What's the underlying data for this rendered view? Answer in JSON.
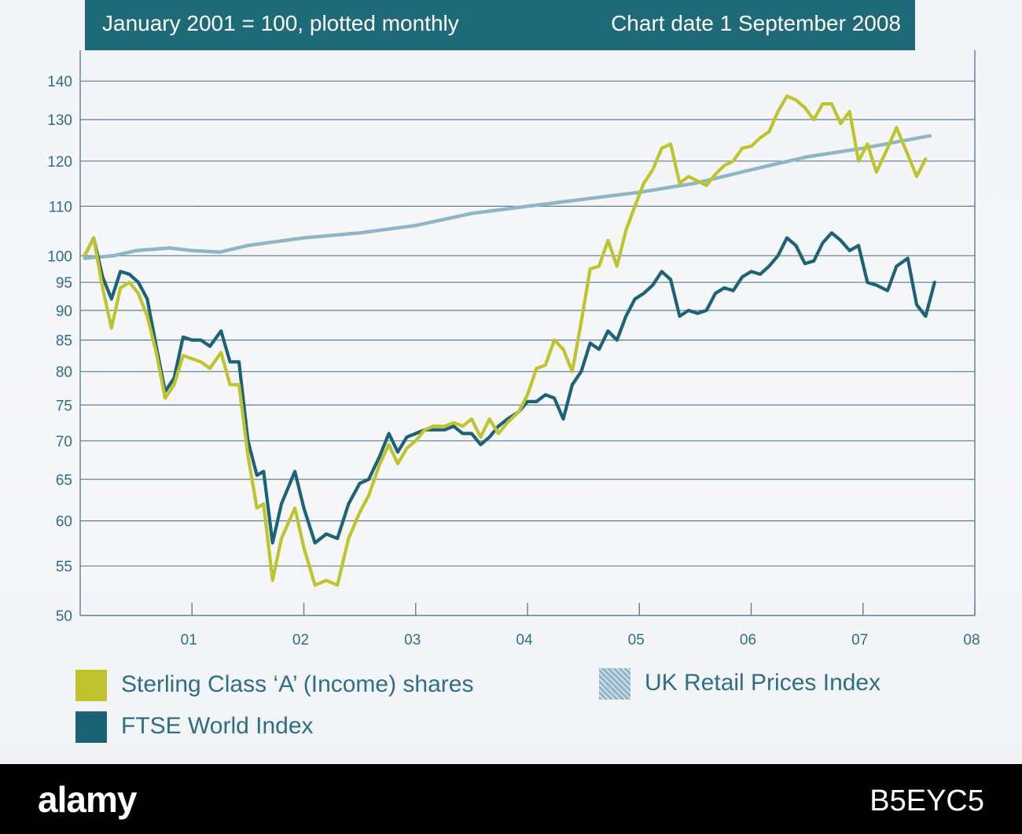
{
  "header": {
    "left_text": "January 2001 = 100, plotted monthly",
    "right_text": "Chart date 1 September 2008"
  },
  "colors": {
    "header_bg": "#1f6a78",
    "grid": "#5d7f95",
    "axis": "#5d7f95",
    "tick_text": "#2f6f86",
    "sterling": "#bfc42e",
    "ftse": "#1d6377",
    "rpi": "#8fb6c6"
  },
  "legend": [
    {
      "key": "sterling",
      "label": "Sterling Class ‘A’ (Income) shares"
    },
    {
      "key": "rpi",
      "label": "UK Retail Prices Index"
    },
    {
      "key": "ftse",
      "label": "FTSE World Index"
    }
  ],
  "footer": {
    "logo": "alamy",
    "image_id": "B5EYC5"
  },
  "chart_data": {
    "type": "line",
    "title": "",
    "xlabel": "",
    "ylabel": "",
    "y_scale": "log",
    "ylim": [
      50,
      145
    ],
    "xlim": [
      2000.0,
      2008.0
    ],
    "yticks": [
      140,
      130,
      120,
      110,
      100,
      95,
      90,
      85,
      80,
      75,
      70,
      65,
      60,
      55,
      50
    ],
    "xticks": [
      {
        "x": 2001,
        "label": "01"
      },
      {
        "x": 2002,
        "label": "02"
      },
      {
        "x": 2003,
        "label": "03"
      },
      {
        "x": 2004,
        "label": "04"
      },
      {
        "x": 2005,
        "label": "05"
      },
      {
        "x": 2006,
        "label": "06"
      },
      {
        "x": 2007,
        "label": "07"
      },
      {
        "x": 2008,
        "label": "08"
      }
    ],
    "grid": true,
    "legend_position": "bottom",
    "series": [
      {
        "key": "rpi",
        "name": "UK Retail Prices Index",
        "points": [
          [
            2000.04,
            99.5
          ],
          [
            2000.3,
            100
          ],
          [
            2000.5,
            101
          ],
          [
            2000.8,
            101.5
          ],
          [
            2001.0,
            101
          ],
          [
            2001.25,
            100.7
          ],
          [
            2001.5,
            102
          ],
          [
            2002.0,
            103.5
          ],
          [
            2002.5,
            104.5
          ],
          [
            2003.0,
            106
          ],
          [
            2003.5,
            108.5
          ],
          [
            2004.0,
            110
          ],
          [
            2004.5,
            111.5
          ],
          [
            2005.0,
            113
          ],
          [
            2005.5,
            115
          ],
          [
            2006.0,
            118
          ],
          [
            2006.5,
            121
          ],
          [
            2007.0,
            123
          ],
          [
            2007.3,
            124.5
          ],
          [
            2007.6,
            126
          ]
        ]
      },
      {
        "key": "ftse",
        "name": "FTSE World Index",
        "points": [
          [
            2000.04,
            100
          ],
          [
            2000.12,
            103.5
          ],
          [
            2000.2,
            96
          ],
          [
            2000.28,
            92
          ],
          [
            2000.36,
            97
          ],
          [
            2000.44,
            96.5
          ],
          [
            2000.52,
            95
          ],
          [
            2000.6,
            92
          ],
          [
            2000.68,
            84
          ],
          [
            2000.76,
            77
          ],
          [
            2000.84,
            79
          ],
          [
            2000.92,
            85.5
          ],
          [
            2001.0,
            85
          ],
          [
            2001.08,
            85
          ],
          [
            2001.16,
            84
          ],
          [
            2001.26,
            86.5
          ],
          [
            2001.34,
            81.5
          ],
          [
            2001.42,
            81.5
          ],
          [
            2001.5,
            70
          ],
          [
            2001.58,
            65.5
          ],
          [
            2001.64,
            66
          ],
          [
            2001.72,
            57.5
          ],
          [
            2001.8,
            62
          ],
          [
            2001.92,
            66
          ],
          [
            2002.0,
            61.5
          ],
          [
            2002.1,
            57.5
          ],
          [
            2002.2,
            58.5
          ],
          [
            2002.3,
            58
          ],
          [
            2002.4,
            62
          ],
          [
            2002.5,
            64.5
          ],
          [
            2002.58,
            65
          ],
          [
            2002.68,
            68
          ],
          [
            2002.76,
            71
          ],
          [
            2002.84,
            68.5
          ],
          [
            2002.92,
            70.5
          ],
          [
            2003.0,
            71
          ],
          [
            2003.08,
            71.5
          ],
          [
            2003.16,
            71.5
          ],
          [
            2003.26,
            71.5
          ],
          [
            2003.34,
            72
          ],
          [
            2003.42,
            71
          ],
          [
            2003.5,
            71
          ],
          [
            2003.58,
            69.5
          ],
          [
            2003.66,
            70.5
          ],
          [
            2003.74,
            72
          ],
          [
            2003.82,
            73
          ],
          [
            2003.92,
            74
          ],
          [
            2004.0,
            75.5
          ],
          [
            2004.08,
            75.5
          ],
          [
            2004.16,
            76.5
          ],
          [
            2004.24,
            76
          ],
          [
            2004.32,
            73
          ],
          [
            2004.4,
            78
          ],
          [
            2004.48,
            80
          ],
          [
            2004.56,
            84.5
          ],
          [
            2004.64,
            83.5
          ],
          [
            2004.72,
            86.5
          ],
          [
            2004.8,
            85
          ],
          [
            2004.88,
            89
          ],
          [
            2004.96,
            92
          ],
          [
            2005.04,
            93
          ],
          [
            2005.12,
            94.5
          ],
          [
            2005.2,
            97
          ],
          [
            2005.28,
            95.5
          ],
          [
            2005.36,
            89
          ],
          [
            2005.44,
            90
          ],
          [
            2005.52,
            89.5
          ],
          [
            2005.6,
            90
          ],
          [
            2005.68,
            93
          ],
          [
            2005.76,
            94
          ],
          [
            2005.84,
            93.5
          ],
          [
            2005.92,
            96
          ],
          [
            2006.0,
            97
          ],
          [
            2006.08,
            96.5
          ],
          [
            2006.16,
            98
          ],
          [
            2006.24,
            100
          ],
          [
            2006.32,
            103.5
          ],
          [
            2006.4,
            102
          ],
          [
            2006.48,
            98.5
          ],
          [
            2006.56,
            99
          ],
          [
            2006.64,
            102.5
          ],
          [
            2006.72,
            104.5
          ],
          [
            2006.8,
            103
          ],
          [
            2006.88,
            101
          ],
          [
            2006.96,
            102
          ],
          [
            2007.04,
            95
          ],
          [
            2007.12,
            94.5
          ],
          [
            2007.22,
            93.5
          ],
          [
            2007.3,
            98
          ],
          [
            2007.4,
            99.5
          ],
          [
            2007.48,
            91
          ],
          [
            2007.56,
            89
          ],
          [
            2007.64,
            95
          ]
        ]
      },
      {
        "key": "sterling",
        "name": "Sterling Class ‘A’ (Income) shares",
        "points": [
          [
            2000.04,
            100
          ],
          [
            2000.12,
            103.5
          ],
          [
            2000.2,
            94
          ],
          [
            2000.28,
            87
          ],
          [
            2000.36,
            94
          ],
          [
            2000.44,
            95
          ],
          [
            2000.52,
            93
          ],
          [
            2000.6,
            89
          ],
          [
            2000.68,
            83
          ],
          [
            2000.76,
            76
          ],
          [
            2000.84,
            78
          ],
          [
            2000.92,
            82.5
          ],
          [
            2001.0,
            82
          ],
          [
            2001.08,
            81.5
          ],
          [
            2001.16,
            80.5
          ],
          [
            2001.26,
            83
          ],
          [
            2001.34,
            78
          ],
          [
            2001.42,
            78
          ],
          [
            2001.5,
            68
          ],
          [
            2001.58,
            61.5
          ],
          [
            2001.64,
            62
          ],
          [
            2001.72,
            53.5
          ],
          [
            2001.8,
            58
          ],
          [
            2001.92,
            61.5
          ],
          [
            2002.0,
            57
          ],
          [
            2002.1,
            53
          ],
          [
            2002.2,
            53.5
          ],
          [
            2002.3,
            53
          ],
          [
            2002.4,
            58
          ],
          [
            2002.5,
            61
          ],
          [
            2002.58,
            63
          ],
          [
            2002.68,
            67
          ],
          [
            2002.76,
            69.5
          ],
          [
            2002.84,
            67
          ],
          [
            2002.92,
            69
          ],
          [
            2003.0,
            70
          ],
          [
            2003.08,
            71.5
          ],
          [
            2003.16,
            72
          ],
          [
            2003.26,
            72
          ],
          [
            2003.34,
            72.5
          ],
          [
            2003.42,
            72
          ],
          [
            2003.5,
            73
          ],
          [
            2003.58,
            70.5
          ],
          [
            2003.66,
            73
          ],
          [
            2003.74,
            71
          ],
          [
            2003.82,
            72.5
          ],
          [
            2003.92,
            74
          ],
          [
            2004.0,
            76.5
          ],
          [
            2004.08,
            80.5
          ],
          [
            2004.16,
            81
          ],
          [
            2004.24,
            85
          ],
          [
            2004.32,
            83.5
          ],
          [
            2004.4,
            80
          ],
          [
            2004.48,
            88
          ],
          [
            2004.56,
            97.5
          ],
          [
            2004.64,
            98
          ],
          [
            2004.72,
            103
          ],
          [
            2004.8,
            98
          ],
          [
            2004.88,
            105
          ],
          [
            2004.96,
            110
          ],
          [
            2005.04,
            115
          ],
          [
            2005.12,
            118
          ],
          [
            2005.2,
            123
          ],
          [
            2005.28,
            124
          ],
          [
            2005.36,
            115
          ],
          [
            2005.44,
            116.5
          ],
          [
            2005.52,
            115.5
          ],
          [
            2005.6,
            114.5
          ],
          [
            2005.68,
            117
          ],
          [
            2005.76,
            119
          ],
          [
            2005.84,
            120
          ],
          [
            2005.92,
            123
          ],
          [
            2006.0,
            123.5
          ],
          [
            2006.08,
            125.5
          ],
          [
            2006.16,
            127
          ],
          [
            2006.24,
            132
          ],
          [
            2006.32,
            136
          ],
          [
            2006.4,
            135
          ],
          [
            2006.48,
            133
          ],
          [
            2006.56,
            130
          ],
          [
            2006.64,
            134
          ],
          [
            2006.72,
            134
          ],
          [
            2006.8,
            129
          ],
          [
            2006.88,
            132
          ],
          [
            2006.96,
            120
          ],
          [
            2007.04,
            124
          ],
          [
            2007.12,
            117.5
          ],
          [
            2007.22,
            123
          ],
          [
            2007.3,
            128
          ],
          [
            2007.4,
            121.5
          ],
          [
            2007.48,
            116.5
          ],
          [
            2007.56,
            120.5
          ]
        ]
      }
    ]
  }
}
